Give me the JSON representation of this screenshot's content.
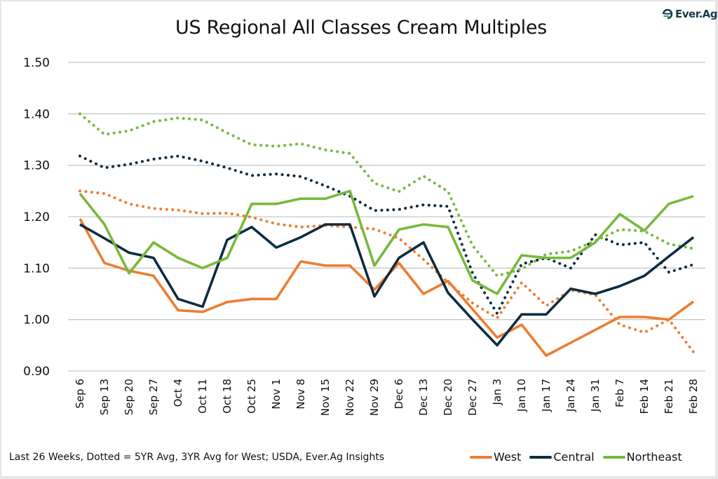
{
  "logo": {
    "icon": "ever-ag-logo-icon",
    "text_main": "Ever.",
    "text_accent": "Ag"
  },
  "footer_note": "Last 26 Weeks, Dotted = 5YR Avg, 3YR Avg for West; USDA, Ever.Ag Insights",
  "chart_data": {
    "type": "line",
    "title": "US Regional All Classes Cream Multiples",
    "xlabel": "",
    "ylabel": "",
    "ylim": [
      0.9,
      1.5
    ],
    "yticks": [
      "0.90",
      "1.00",
      "1.10",
      "1.20",
      "1.30",
      "1.40",
      "1.50"
    ],
    "ytick_values": [
      0.9,
      1.0,
      1.1,
      1.2,
      1.3,
      1.4,
      1.5
    ],
    "grid": true,
    "legend_position": "bottom-right",
    "categories": [
      "Sep 6",
      "Sep 13",
      "Sep 20",
      "Sep 27",
      "Oct 4",
      "Oct 11",
      "Oct 18",
      "Oct 25",
      "Nov 1",
      "Nov 8",
      "Nov 15",
      "Nov 22",
      "Nov 29",
      "Dec 6",
      "Dec 13",
      "Dec 20",
      "Dec 27",
      "Jan 3",
      "Jan 10",
      "Jan 17",
      "Jan 24",
      "Jan 31",
      "Feb 7",
      "Feb 14",
      "Feb 21",
      "Feb 28"
    ],
    "series": [
      {
        "name": "West",
        "color": "#ED7D31",
        "style": "solid",
        "in_legend": true,
        "values": [
          1.196,
          1.11,
          1.095,
          1.085,
          1.018,
          1.015,
          1.034,
          1.04,
          1.04,
          1.113,
          1.105,
          1.105,
          1.058,
          1.11,
          1.05,
          1.075,
          1.02,
          0.965,
          0.99,
          0.93,
          0.955,
          0.98,
          1.005,
          1.005,
          1.0,
          1.035
        ]
      },
      {
        "name": "Central",
        "color": "#0E2C40",
        "style": "solid",
        "in_legend": true,
        "values": [
          1.185,
          1.158,
          1.13,
          1.12,
          1.04,
          1.025,
          1.155,
          1.18,
          1.14,
          1.16,
          1.185,
          1.185,
          1.045,
          1.12,
          1.15,
          1.052,
          1.0,
          0.95,
          1.01,
          1.01,
          1.06,
          1.05,
          1.065,
          1.085,
          1.123,
          1.16
        ]
      },
      {
        "name": "Northeast",
        "color": "#78B83C",
        "style": "solid",
        "in_legend": true,
        "values": [
          1.245,
          1.185,
          1.09,
          1.15,
          1.12,
          1.1,
          1.12,
          1.225,
          1.225,
          1.235,
          1.235,
          1.25,
          1.105,
          1.175,
          1.185,
          1.18,
          1.076,
          1.05,
          1.125,
          1.12,
          1.12,
          1.15,
          1.205,
          1.173,
          1.225,
          1.24
        ]
      },
      {
        "name": "West 3YR Avg",
        "color": "#ED7D31",
        "style": "dotted",
        "in_legend": false,
        "values": [
          1.25,
          1.245,
          1.225,
          1.216,
          1.213,
          1.206,
          1.207,
          1.199,
          1.186,
          1.18,
          1.183,
          1.18,
          1.176,
          1.158,
          1.117,
          1.072,
          1.032,
          1.003,
          1.072,
          1.027,
          1.057,
          1.048,
          0.99,
          0.975,
          1.0,
          0.937
        ]
      },
      {
        "name": "Central 5YR Avg",
        "color": "#0E2C40",
        "style": "dotted",
        "in_legend": false,
        "values": [
          1.318,
          1.295,
          1.302,
          1.312,
          1.318,
          1.308,
          1.295,
          1.28,
          1.283,
          1.278,
          1.26,
          1.24,
          1.212,
          1.214,
          1.223,
          1.22,
          1.09,
          1.012,
          1.108,
          1.12,
          1.1,
          1.165,
          1.145,
          1.15,
          1.092,
          1.107
        ]
      },
      {
        "name": "Northeast 5YR Avg",
        "color": "#78B83C",
        "style": "dotted",
        "in_legend": false,
        "values": [
          1.4,
          1.36,
          1.367,
          1.385,
          1.392,
          1.388,
          1.363,
          1.34,
          1.337,
          1.342,
          1.33,
          1.323,
          1.265,
          1.249,
          1.279,
          1.249,
          1.144,
          1.085,
          1.098,
          1.127,
          1.133,
          1.153,
          1.175,
          1.172,
          1.147,
          1.138
        ]
      }
    ]
  }
}
